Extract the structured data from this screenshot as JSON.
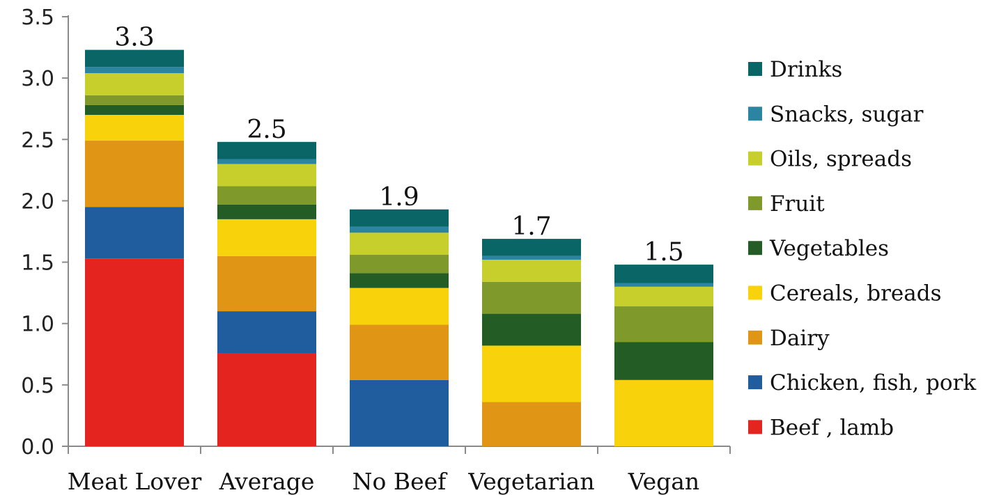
{
  "chart_data": {
    "type": "bar",
    "stacked": true,
    "categories": [
      "Meat Lover",
      "Average",
      "No Beef",
      "Vegetarian",
      "Vegan"
    ],
    "totals": [
      "3.3",
      "2.5",
      "1.9",
      "1.7",
      "1.5"
    ],
    "ylim": [
      0,
      3.5
    ],
    "yticks": [
      "0.0",
      "0.5",
      "1.0",
      "1.5",
      "2.0",
      "2.5",
      "3.0",
      "3.5"
    ],
    "grid": false,
    "legend_position": "right",
    "series": [
      {
        "name": "Beef , lamb",
        "color": "#e3241f",
        "values": [
          1.53,
          0.76,
          0.0,
          0.0,
          0.0
        ]
      },
      {
        "name": "Chicken, fish, pork",
        "color": "#1f5d9e",
        "values": [
          0.42,
          0.34,
          0.54,
          0.0,
          0.0
        ]
      },
      {
        "name": "Dairy",
        "color": "#e09514",
        "values": [
          0.54,
          0.45,
          0.45,
          0.36,
          0.0
        ]
      },
      {
        "name": "Cereals, breads",
        "color": "#f8d30c",
        "values": [
          0.21,
          0.3,
          0.3,
          0.46,
          0.54
        ]
      },
      {
        "name": "Vegetables",
        "color": "#235c24",
        "values": [
          0.08,
          0.12,
          0.12,
          0.26,
          0.31
        ]
      },
      {
        "name": "Fruit",
        "color": "#7f9a2a",
        "values": [
          0.08,
          0.15,
          0.15,
          0.26,
          0.29
        ]
      },
      {
        "name": "Oils, spreads",
        "color": "#c6cf2c",
        "values": [
          0.18,
          0.18,
          0.18,
          0.18,
          0.16
        ]
      },
      {
        "name": "Snacks, sugar",
        "color": "#2b85a1",
        "values": [
          0.05,
          0.04,
          0.05,
          0.03,
          0.03
        ]
      },
      {
        "name": "Drinks",
        "color": "#0a6666",
        "values": [
          0.14,
          0.14,
          0.14,
          0.14,
          0.15
        ]
      }
    ]
  }
}
